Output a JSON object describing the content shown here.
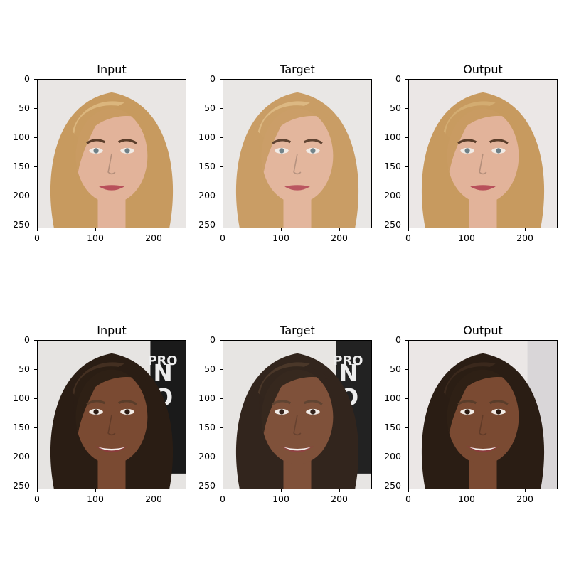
{
  "figure": {
    "panels": [
      {
        "row": 0,
        "col": 0,
        "title": "Input",
        "subject": "blonde-woman",
        "variant": "input"
      },
      {
        "row": 0,
        "col": 1,
        "title": "Target",
        "subject": "blonde-woman",
        "variant": "target"
      },
      {
        "row": 0,
        "col": 2,
        "title": "Output",
        "subject": "blonde-woman",
        "variant": "output"
      },
      {
        "row": 1,
        "col": 0,
        "title": "Input",
        "subject": "dark-haired-woman",
        "variant": "input"
      },
      {
        "row": 1,
        "col": 1,
        "title": "Target",
        "subject": "dark-haired-woman",
        "variant": "target"
      },
      {
        "row": 1,
        "col": 2,
        "title": "Output",
        "subject": "dark-haired-woman",
        "variant": "output"
      }
    ],
    "y_ticks": [
      "0",
      "50",
      "100",
      "150",
      "200",
      "250"
    ],
    "x_ticks": [
      "0",
      "100",
      "200"
    ],
    "background_letters": [
      "PRO",
      "N",
      "O"
    ]
  }
}
